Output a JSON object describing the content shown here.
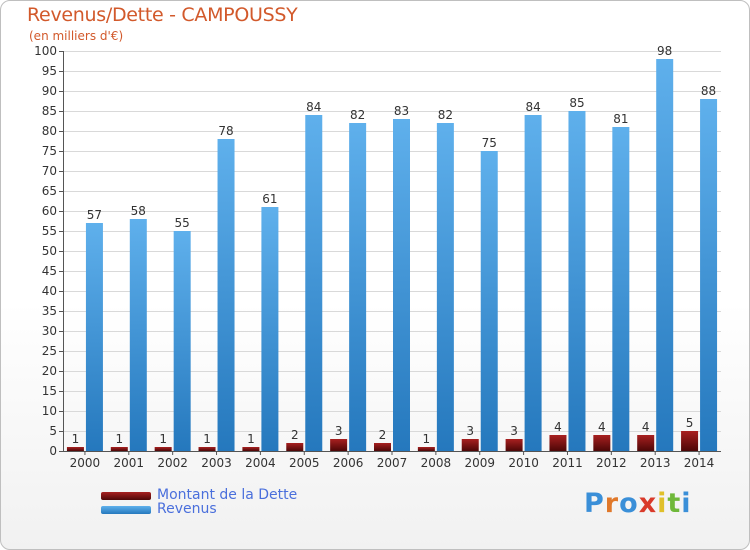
{
  "chart_data": {
    "type": "bar",
    "title": "Revenus/Dette - CAMPOUSSY",
    "subtitle": "(en milliers d'€)",
    "xlabel": "",
    "ylabel": "",
    "ylim": [
      0,
      100
    ],
    "ytick_step": 5,
    "grid": true,
    "legend_position": "bottom-left",
    "categories": [
      "2000",
      "2001",
      "2002",
      "2003",
      "2004",
      "2005",
      "2006",
      "2007",
      "2008",
      "2009",
      "2010",
      "2011",
      "2012",
      "2013",
      "2014"
    ],
    "series": [
      {
        "name": "Montant de la Dette",
        "color": "#7a0f0f",
        "values": [
          1,
          1,
          1,
          1,
          1,
          2,
          3,
          2,
          1,
          3,
          3,
          4,
          4,
          4,
          5
        ]
      },
      {
        "name": "Revenus",
        "color": "#3a96d8",
        "values": [
          57,
          58,
          55,
          78,
          61,
          84,
          82,
          83,
          82,
          75,
          84,
          85,
          81,
          98,
          88
        ]
      }
    ]
  },
  "legend": {
    "debt_label": "Montant de la Dette",
    "revenue_label": "Revenus"
  },
  "logo": {
    "text": "Proxiti"
  }
}
